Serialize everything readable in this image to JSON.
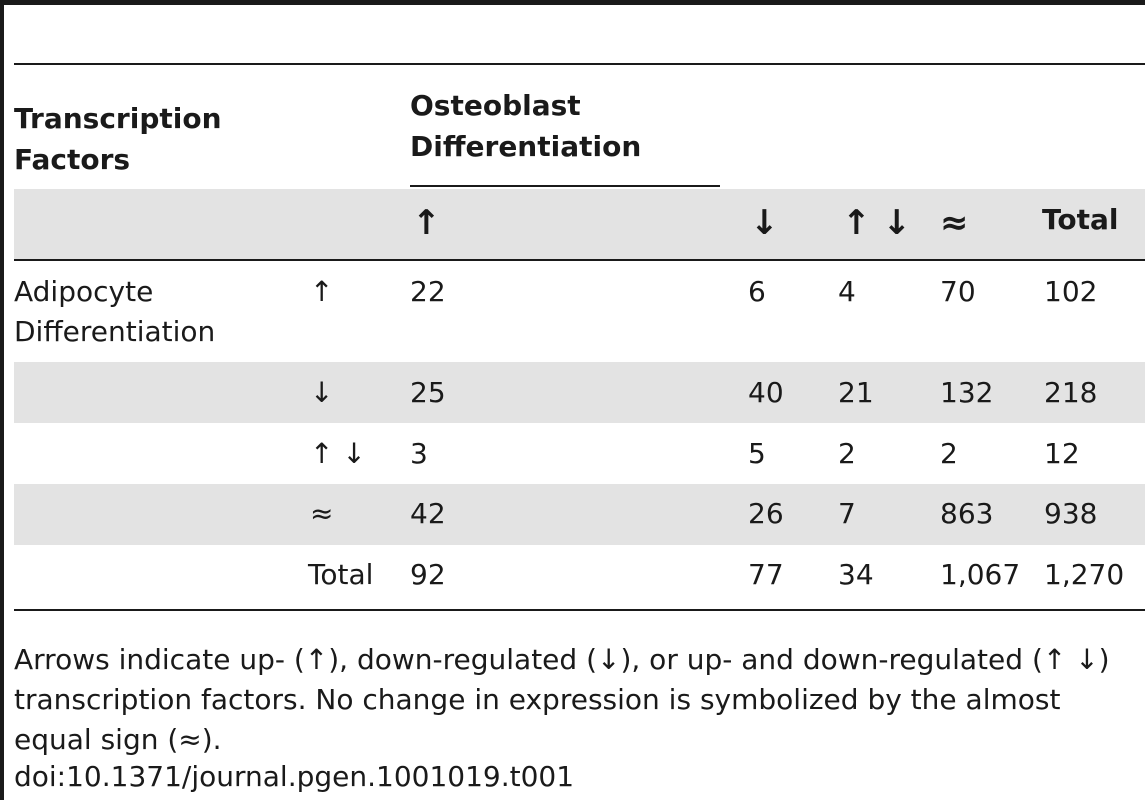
{
  "table": {
    "header": {
      "row_label": "Transcription Factors",
      "col_group": "Osteoblast Differentiation",
      "col_labels": [
        "↑",
        "↓",
        "↑ ↓",
        "≈",
        "Total"
      ]
    },
    "row_group": "Adipocyte Differentiation",
    "rows": [
      {
        "symbol": "↑",
        "values": [
          "22",
          "6",
          "4",
          "70",
          "102"
        ]
      },
      {
        "symbol": "↓",
        "values": [
          "25",
          "40",
          "21",
          "132",
          "218"
        ]
      },
      {
        "symbol": "↑ ↓",
        "values": [
          "3",
          "5",
          "2",
          "2",
          "12"
        ]
      },
      {
        "symbol": "≈",
        "values": [
          "42",
          "26",
          "7",
          "863",
          "938"
        ]
      },
      {
        "symbol": "Total",
        "values": [
          "92",
          "77",
          "34",
          "1,067",
          "1,270"
        ]
      }
    ]
  },
  "footnote": "Arrows indicate up- (↑), down-regulated (↓), or up- and down-regulated (↑ ↓) transcription factors. No change in expression is symbolized by the almost equal sign (≈).",
  "doi": "doi:10.1371/journal.pgen.1001019.t001",
  "colors": {
    "band": "#e3e3e3",
    "rule": "#1a1a1a"
  }
}
